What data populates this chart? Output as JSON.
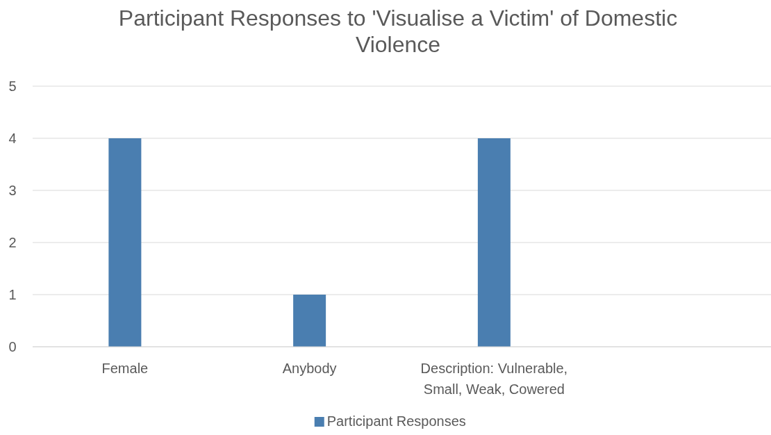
{
  "chart_data": {
    "type": "bar",
    "title": "Participant Responses to 'Visualise a Victim' of Domestic Violence",
    "categories": [
      "Female",
      "Anybody",
      "Description: Vulnerable, Small, Weak, Cowered",
      null
    ],
    "series": [
      {
        "name": "Participant Responses",
        "color": "#4a7eb0",
        "values": [
          4,
          1,
          4,
          null
        ]
      }
    ],
    "ylim": [
      0,
      5
    ],
    "yticks": [
      0,
      1,
      2,
      3,
      4,
      5
    ],
    "grid": "y",
    "legend": "bottom"
  }
}
